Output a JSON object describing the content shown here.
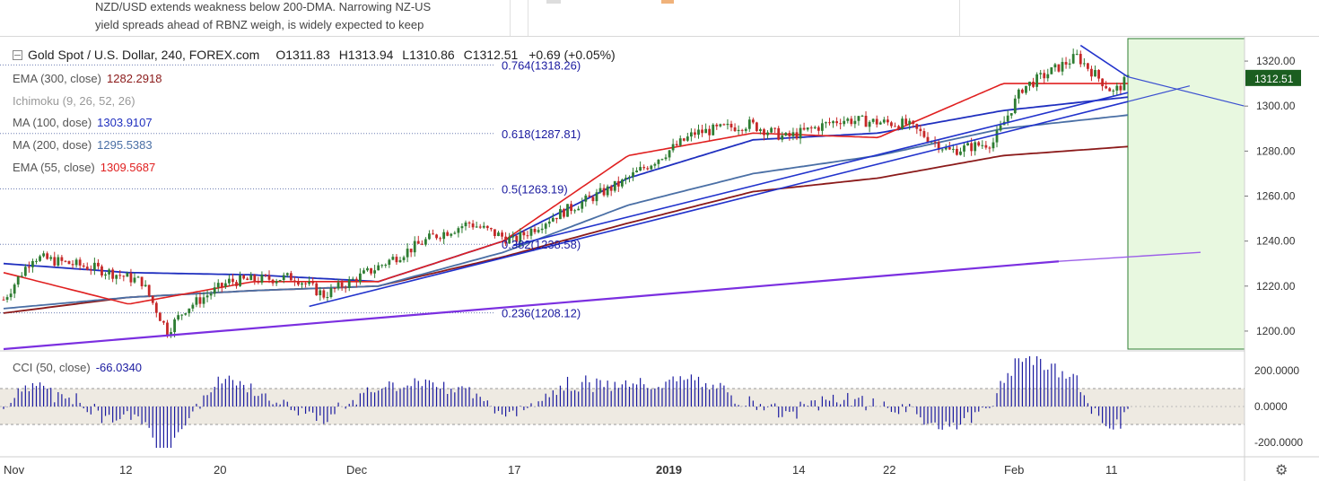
{
  "news": {
    "line1": "NZD/USD extends weakness below 200-DMA. Narrowing NZ-US",
    "line2": "yield spreads ahead of RBNZ weigh, is widely expected to keep"
  },
  "header": {
    "symbol": "Gold Spot / U.S. Dollar, 240, FOREX.com",
    "open": "O1311.83",
    "high": "H1313.94",
    "low": "L1310.86",
    "close": "C1312.51",
    "change": "+0.69 (+0.05%)"
  },
  "indicators": [
    {
      "name": "EMA (300, close)",
      "value": "1282.2918",
      "color": "#8b1a1a"
    },
    {
      "name": "Ichimoku (9, 26, 52, 26)",
      "value": "",
      "color": "#999999"
    },
    {
      "name": "MA (100, dose)",
      "value": "1303.9107",
      "color": "#1f2fbf"
    },
    {
      "name": "MA (200, dose)",
      "value": "1295.5383",
      "color": "#4a6fa5"
    },
    {
      "name": "EMA (55, close)",
      "value": "1309.5687",
      "color": "#e02020"
    }
  ],
  "fibonacci": [
    {
      "label": "0.764(1318.26)",
      "value": 1318.26
    },
    {
      "label": "0.618(1287.81)",
      "value": 1287.81
    },
    {
      "label": "0.5(1263.19)",
      "value": 1263.19
    },
    {
      "label": "0.382(1238.58)",
      "value": 1238.58
    },
    {
      "label": "0.236(1208.12)",
      "value": 1208.12
    }
  ],
  "price_axis": {
    "ticks": [
      "1320.00",
      "1300.00",
      "1280.00",
      "1260.00",
      "1240.00",
      "1220.00",
      "1200.00"
    ],
    "current_price": "1312.51",
    "current_color": "#1b5e20"
  },
  "cci": {
    "name": "CCI (50, close)",
    "value": "-66.0340",
    "ticks": [
      "200.0000",
      "0.0000",
      "-200.0000"
    ]
  },
  "time_axis": {
    "labels": [
      "Nov",
      "12",
      "20",
      "Dec",
      "17",
      "2019",
      "14",
      "22",
      "Feb",
      "11"
    ]
  },
  "colors": {
    "up_candle": "#2e7d32",
    "down_candle": "#c62828",
    "trendline": "#2233cc",
    "long_trend": "#7b2fe0",
    "forecast_zone": "#e8f8e0",
    "cci_line": "#1a1aa0",
    "cci_band": "#eeeae2"
  },
  "chart_data": {
    "type": "line",
    "title": "Gold Spot / U.S. Dollar, 240, FOREX.com",
    "x": [
      "Nov",
      "12",
      "20",
      "Dec",
      "17",
      "2019",
      "14",
      "22",
      "Feb",
      "11"
    ],
    "series": [
      {
        "name": "EMA (300, close)",
        "values": [
          1208,
          1215,
          1218,
          1220,
          1233,
          1248,
          1262,
          1268,
          1278,
          1282
        ]
      },
      {
        "name": "MA (100, dose)",
        "values": [
          1230,
          1226,
          1225,
          1222,
          1240,
          1268,
          1285,
          1288,
          1298,
          1304
        ]
      },
      {
        "name": "MA (200, dose)",
        "values": [
          1210,
          1215,
          1218,
          1220,
          1235,
          1256,
          1270,
          1278,
          1290,
          1296
        ]
      },
      {
        "name": "EMA (55, close)",
        "values": [
          1226,
          1212,
          1222,
          1222,
          1240,
          1278,
          1288,
          1286,
          1310,
          1310
        ]
      }
    ],
    "ylabel": "",
    "ylim": [
      1192,
      1330
    ],
    "cci_ylim": [
      -250,
      300
    ],
    "grid": false,
    "legend": "top-left"
  }
}
